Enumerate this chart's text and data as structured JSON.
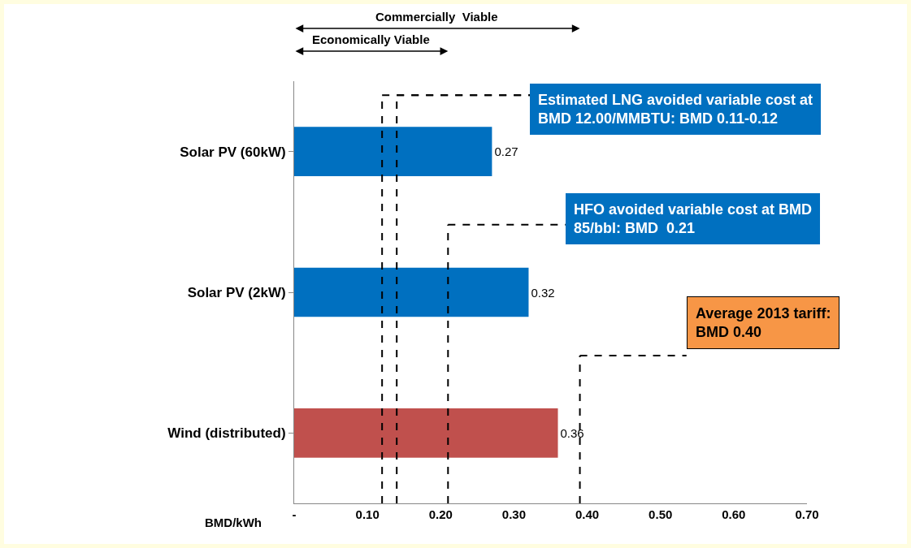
{
  "chart_data": {
    "type": "bar",
    "orientation": "horizontal",
    "categories": [
      "Solar PV (60kW)",
      "Solar PV (2kW)",
      "Wind (distributed)"
    ],
    "values": [
      0.27,
      0.32,
      0.36
    ],
    "colors": [
      "#0070c0",
      "#0070c0",
      "#c0504d"
    ],
    "data_labels": true,
    "grid": false,
    "xlabel": "BMD/kWh",
    "xlim": [
      0,
      0.7
    ],
    "xticks": [
      {
        "value": 0,
        "label": "-"
      },
      {
        "value": 0.1,
        "label": "0.10"
      },
      {
        "value": 0.2,
        "label": "0.20"
      },
      {
        "value": 0.3,
        "label": "0.30"
      },
      {
        "value": 0.4,
        "label": "0.40"
      },
      {
        "value": 0.5,
        "label": "0.50"
      },
      {
        "value": 0.6,
        "label": "0.60"
      },
      {
        "value": 0.7,
        "label": "0.70"
      }
    ],
    "ref_lines": [
      {
        "axis": "x",
        "value": 0.12,
        "label": "Estimated LNG avoided variable cost at\nBMD 12.00/MMBTU: BMD 0.11-0.12",
        "line_style": "dashed",
        "color": "#000000"
      },
      {
        "axis": "x",
        "value": 0.14,
        "line_style": "dashed",
        "color": "#000000"
      },
      {
        "axis": "x",
        "value": 0.21,
        "label": "HFO avoided variable cost at BMD\n85/bbl: BMD  0.21",
        "line_style": "dashed",
        "color": "#000000"
      },
      {
        "axis": "x",
        "value": 0.39,
        "label": "Average 2013 tariff:\nBMD 0.40",
        "line_style": "dashed",
        "color": "#000000"
      }
    ],
    "annotations": [
      "Commercially  Viable",
      "Economically Viable"
    ]
  }
}
